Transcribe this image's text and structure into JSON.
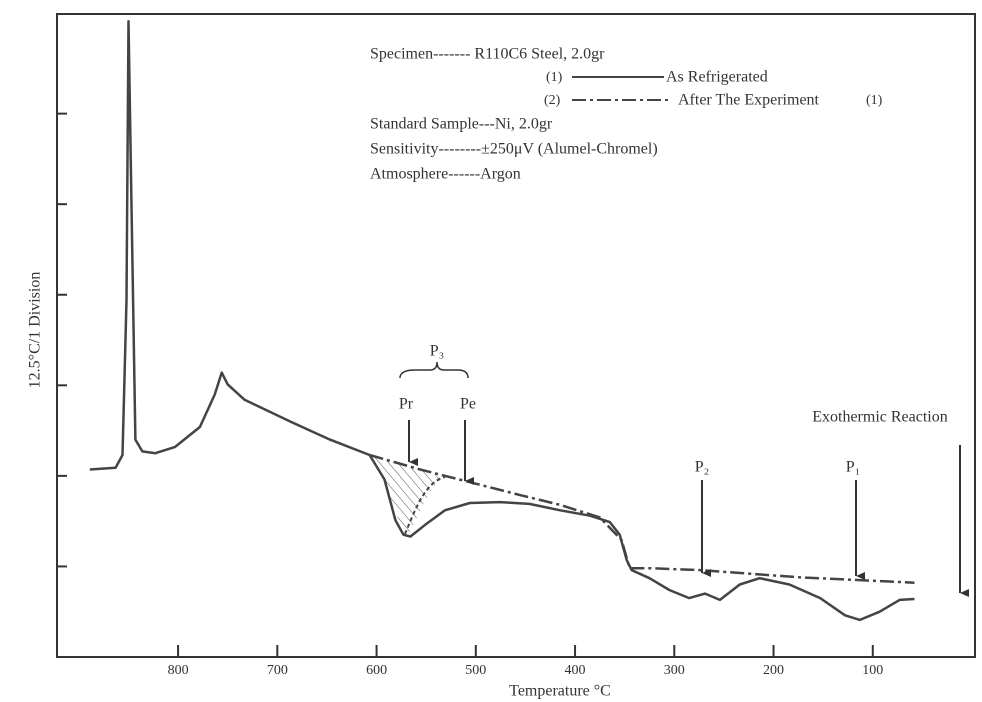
{
  "chart_data": {
    "type": "line",
    "x_label": "Temperature °C",
    "y_label": "12.5°C/1 Division",
    "xlim": [
      922,
      -3
    ],
    "xticks": [
      800,
      700,
      600,
      500,
      400,
      300,
      200,
      100
    ],
    "ylim": [
      0,
      7.1
    ],
    "yticks": [
      1,
      2,
      3,
      4,
      5,
      6
    ],
    "info": [
      "Specimen------- R110C6 Steel, 2.0gr",
      "Standard Sample---Ni, 2.0gr",
      "Sensitivity--------±250μV (Alumel-Chromel)",
      "Atmosphere------Argon"
    ],
    "legend_numbers": [
      "(1)",
      "(2)",
      "(1)"
    ],
    "annotations": [
      "P₃",
      "Pr",
      "Pe",
      "P₂",
      "P₁",
      "Exothermic Reaction"
    ],
    "series": [
      {
        "name": "As Refrigerated",
        "color": "#444",
        "style": "solid",
        "x": [
          889,
          863,
          856,
          852,
          850,
          847,
          843,
          836,
          823,
          803,
          778,
          763,
          756,
          750,
          733,
          687,
          647,
          607,
          592,
          581,
          573,
          566,
          551,
          531,
          506,
          476,
          446,
          415,
          385,
          365,
          355,
          348,
          343,
          325,
          305,
          285,
          269,
          254,
          234,
          214,
          184,
          153,
          128,
          113,
          93,
          73,
          58
        ],
        "values": [
          2.07,
          2.09,
          2.23,
          3.94,
          7.02,
          5.05,
          2.4,
          2.27,
          2.25,
          2.32,
          2.54,
          2.9,
          3.14,
          3.01,
          2.84,
          2.6,
          2.4,
          2.23,
          1.96,
          1.51,
          1.35,
          1.33,
          1.46,
          1.62,
          1.7,
          1.71,
          1.69,
          1.62,
          1.56,
          1.49,
          1.35,
          1.07,
          0.96,
          0.87,
          0.74,
          0.65,
          0.7,
          0.63,
          0.8,
          0.87,
          0.8,
          0.65,
          0.46,
          0.41,
          0.5,
          0.63,
          0.64
        ]
      },
      {
        "name": "After The Experiment",
        "color": "#444",
        "style": "dashdot",
        "x": [
          607,
          556,
          506,
          456,
          415,
          375,
          353,
          345,
          325,
          274,
          174,
          58
        ],
        "values": [
          2.23,
          2.07,
          1.93,
          1.79,
          1.68,
          1.54,
          1.29,
          0.98,
          0.98,
          0.96,
          0.88,
          0.82
        ]
      }
    ]
  }
}
